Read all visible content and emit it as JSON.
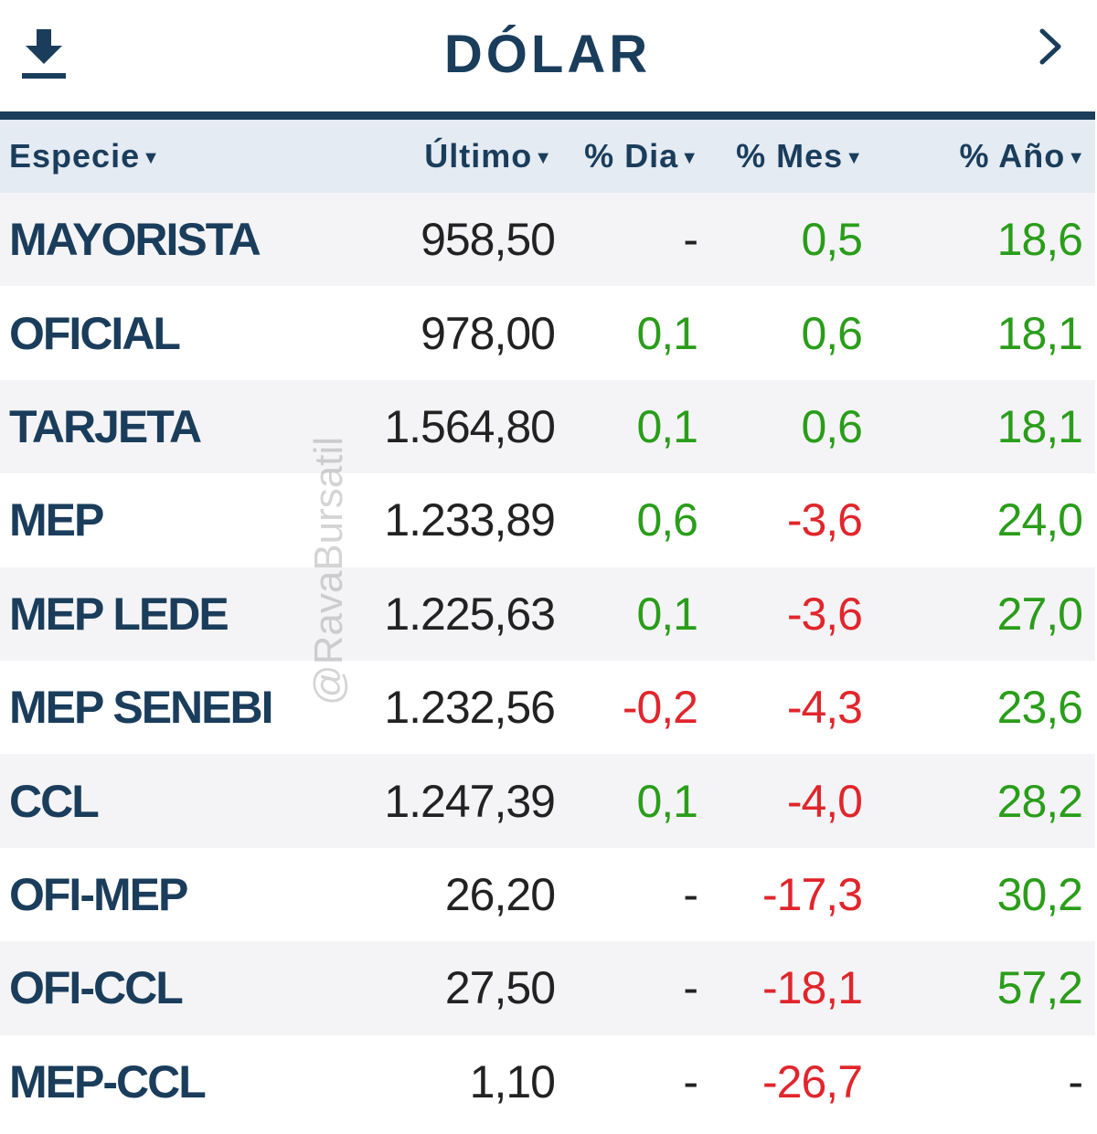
{
  "header": {
    "title": "DÓLAR"
  },
  "table": {
    "columns": [
      "Especie",
      "Último",
      "% Dia",
      "% Mes",
      "% Año"
    ],
    "rows": [
      {
        "name": "MAYORISTA",
        "last": "958,50",
        "dia": "-",
        "mes": "0,5",
        "anio": "18,6"
      },
      {
        "name": "OFICIAL",
        "last": "978,00",
        "dia": "0,1",
        "mes": "0,6",
        "anio": "18,1"
      },
      {
        "name": "TARJETA",
        "last": "1.564,80",
        "dia": "0,1",
        "mes": "0,6",
        "anio": "18,1"
      },
      {
        "name": "MEP",
        "last": "1.233,89",
        "dia": "0,6",
        "mes": "-3,6",
        "anio": "24,0"
      },
      {
        "name": "MEP LEDE",
        "last": "1.225,63",
        "dia": "0,1",
        "mes": "-3,6",
        "anio": "27,0"
      },
      {
        "name": "MEP SENEBI",
        "last": "1.232,56",
        "dia": "-0,2",
        "mes": "-4,3",
        "anio": "23,6"
      },
      {
        "name": "CCL",
        "last": "1.247,39",
        "dia": "0,1",
        "mes": "-4,0",
        "anio": "28,2"
      },
      {
        "name": "OFI-MEP",
        "last": "26,20",
        "dia": "-",
        "mes": "-17,3",
        "anio": "30,2"
      },
      {
        "name": "OFI-CCL",
        "last": "27,50",
        "dia": "-",
        "mes": "-18,1",
        "anio": "57,2"
      },
      {
        "name": "MEP-CCL",
        "last": "1,10",
        "dia": "-",
        "mes": "-26,7",
        "anio": "-"
      }
    ]
  },
  "watermark": "@RavaBursatil",
  "icons": {
    "download": "download-icon",
    "next": "chevron-right-icon",
    "sort": "sort-caret-icon"
  },
  "colors": {
    "primary": "#1b3d5c",
    "positive": "#2a9d1a",
    "negative": "#e0262c",
    "header_bg": "#e4ebf3",
    "row_alt_bg": "#f4f4f6"
  }
}
